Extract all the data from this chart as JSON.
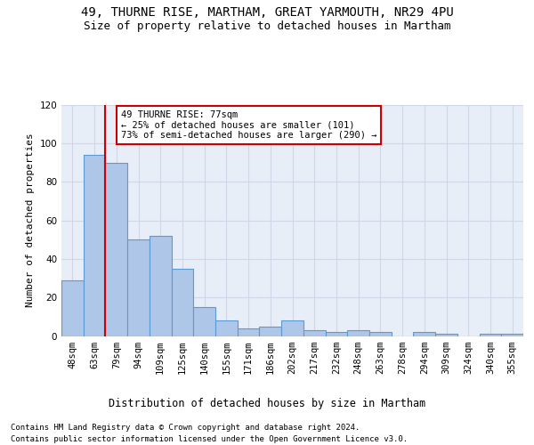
{
  "title1": "49, THURNE RISE, MARTHAM, GREAT YARMOUTH, NR29 4PU",
  "title2": "Size of property relative to detached houses in Martham",
  "xlabel": "Distribution of detached houses by size in Martham",
  "ylabel": "Number of detached properties",
  "categories": [
    "48sqm",
    "63sqm",
    "79sqm",
    "94sqm",
    "109sqm",
    "125sqm",
    "140sqm",
    "155sqm",
    "171sqm",
    "186sqm",
    "202sqm",
    "217sqm",
    "232sqm",
    "248sqm",
    "263sqm",
    "278sqm",
    "294sqm",
    "309sqm",
    "324sqm",
    "340sqm",
    "355sqm"
  ],
  "values": [
    29,
    94,
    90,
    50,
    52,
    35,
    15,
    8,
    4,
    5,
    8,
    3,
    2,
    3,
    2,
    0,
    2,
    1,
    0,
    1,
    1
  ],
  "bar_color": "#aec6e8",
  "bar_edge_color": "#5b9bd5",
  "vline_color": "#cc0000",
  "annotation_text": "49 THURNE RISE: 77sqm\n← 25% of detached houses are smaller (101)\n73% of semi-detached houses are larger (290) →",
  "annotation_box_color": "#ffffff",
  "annotation_box_edge": "#cc0000",
  "ylim": [
    0,
    120
  ],
  "yticks": [
    0,
    20,
    40,
    60,
    80,
    100,
    120
  ],
  "grid_color": "#d0d8e8",
  "background_color": "#e8eef8",
  "footer1": "Contains HM Land Registry data © Crown copyright and database right 2024.",
  "footer2": "Contains public sector information licensed under the Open Government Licence v3.0.",
  "title1_fontsize": 10,
  "title2_fontsize": 9,
  "xlabel_fontsize": 8.5,
  "ylabel_fontsize": 8,
  "tick_fontsize": 7.5,
  "annotation_fontsize": 7.5,
  "footer_fontsize": 6.5
}
